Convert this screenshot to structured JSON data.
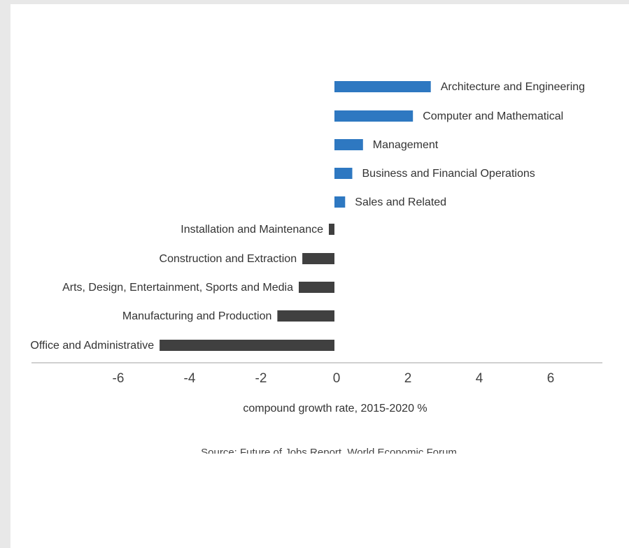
{
  "chart_data": {
    "type": "bar",
    "orientation": "horizontal",
    "categories": [
      "Architecture and Engineering",
      "Computer and Mathematical",
      "Management",
      "Business and Financial Operations",
      "Sales and Related",
      "Installation and Maintenance",
      "Construction and Extraction",
      "Arts, Design, Entertainment, Sports and Media",
      "Manufacturing and Production",
      "Office and Administrative"
    ],
    "values": [
      2.7,
      2.2,
      0.8,
      0.5,
      0.3,
      -0.15,
      -0.9,
      -1.0,
      -1.6,
      -4.9
    ],
    "xlabel": "compound growth rate, 2015-2020 %",
    "xticks": [
      -6,
      -4,
      -2,
      0,
      2,
      4,
      6
    ],
    "xlim": [
      -7,
      7
    ],
    "grid": false,
    "legend": "none",
    "colors": {
      "positive": "#2e78c1",
      "negative": "#404040",
      "axis": "#a0a0a0",
      "text": "#333333"
    }
  },
  "source": "Source: Future of Jobs Report, World Economic Forum"
}
